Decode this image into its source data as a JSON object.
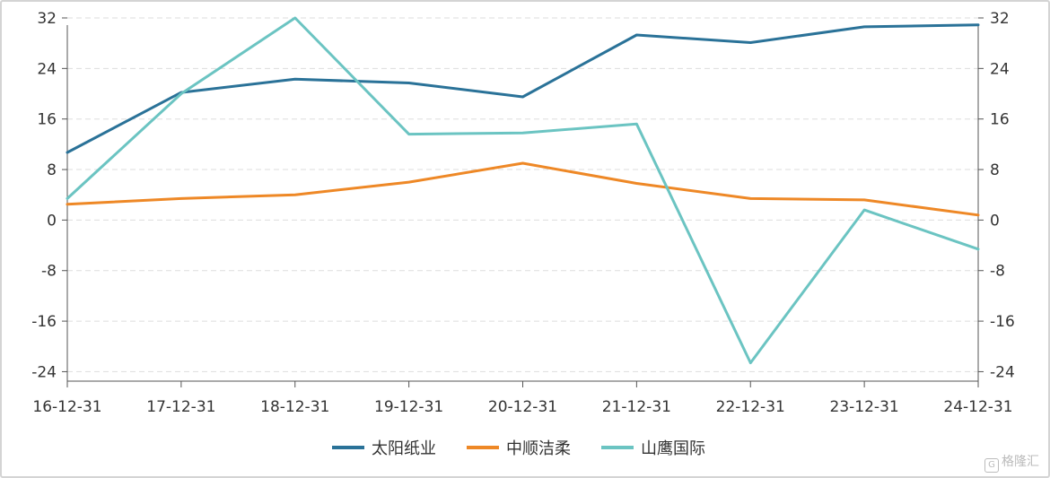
{
  "chart_data": {
    "type": "line",
    "categories": [
      "16-12-31",
      "17-12-31",
      "18-12-31",
      "19-12-31",
      "20-12-31",
      "21-12-31",
      "22-12-31",
      "23-12-31",
      "24-12-31"
    ],
    "series": [
      {
        "name": "太阳纸业",
        "color": "#2a7298",
        "values": [
          10.7,
          20.2,
          22.3,
          21.7,
          19.5,
          29.3,
          28.1,
          30.6,
          30.9
        ]
      },
      {
        "name": "中顺洁柔",
        "color": "#ee8826",
        "values": [
          2.5,
          3.4,
          4.0,
          6.0,
          9.0,
          5.8,
          3.4,
          3.2,
          0.8
        ]
      },
      {
        "name": "山鹰国际",
        "color": "#6bc4c2",
        "values": [
          3.4,
          20.0,
          32.0,
          13.6,
          13.8,
          15.2,
          -22.6,
          1.6,
          -4.6
        ]
      }
    ],
    "yticks": [
      "32",
      "24",
      "16",
      "8",
      "0",
      "-8",
      "-16",
      "-24"
    ],
    "ytick_values": [
      32,
      24,
      16,
      8,
      0,
      -8,
      -16,
      -24
    ],
    "ylim": [
      -25.5,
      32
    ],
    "grid": true,
    "legend_position": "bottom-center",
    "title": "",
    "xlabel": "",
    "ylabel": ""
  },
  "watermark": {
    "text": "格隆汇",
    "icon": "G"
  }
}
